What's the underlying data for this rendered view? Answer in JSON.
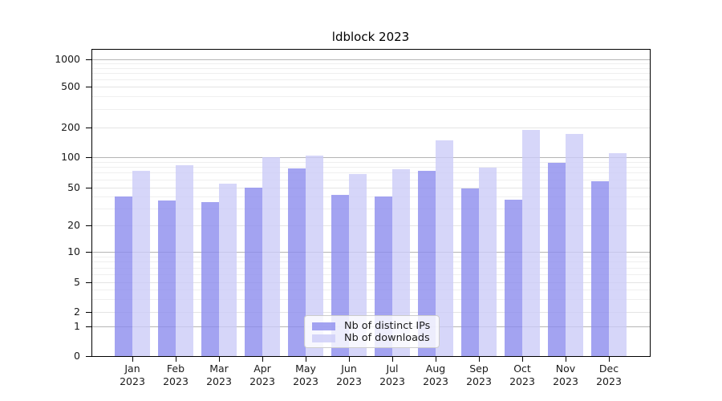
{
  "title": "ldblock 2023",
  "legend": {
    "items": [
      {
        "label": "Nb of distinct IPs"
      },
      {
        "label": "Nb of downloads"
      }
    ]
  },
  "y_axis": {
    "tick_labels": [
      "1000",
      "500",
      "200",
      "100",
      "50",
      "20",
      "10",
      "5",
      "2",
      "1",
      "0"
    ]
  },
  "x_axis": {
    "months": [
      "Jan",
      "Feb",
      "Mar",
      "Apr",
      "May",
      "Jun",
      "Jul",
      "Aug",
      "Sep",
      "Oct",
      "Nov",
      "Dec"
    ],
    "year": "2023"
  },
  "colors": {
    "ips_bar": "#8c8ced",
    "downloads_bar": "#ccccf8",
    "bar_alpha": "0.8",
    "grid_major": "#b5b5b5",
    "grid_light": "#e4e4e4",
    "grid_minor": "#efefef",
    "legend_border": "#cccccc"
  },
  "chart_data": {
    "type": "bar",
    "title": "ldblock 2023",
    "categories": [
      "Jan 2023",
      "Feb 2023",
      "Mar 2023",
      "Apr 2023",
      "May 2023",
      "Jun 2023",
      "Jul 2023",
      "Aug 2023",
      "Sep 2023",
      "Oct 2023",
      "Nov 2023",
      "Dec 2023"
    ],
    "series": [
      {
        "name": "Nb of distinct IPs",
        "values": [
          41,
          37,
          36,
          51,
          78,
          43,
          41,
          74,
          50,
          38,
          90,
          59
        ]
      },
      {
        "name": "Nb of downloads",
        "values": [
          75,
          85,
          56,
          101,
          105,
          69,
          77,
          150,
          80,
          194,
          176,
          112
        ]
      }
    ],
    "xlabel": "",
    "ylabel": "",
    "yscale": "symlog (log above 1, linear 0-1)",
    "y_ticks": [
      0,
      1,
      2,
      5,
      10,
      20,
      50,
      100,
      200,
      500,
      1000
    ],
    "ylim": [
      0,
      1250
    ],
    "grid": true,
    "legend_position": "lower center, inside plot"
  }
}
